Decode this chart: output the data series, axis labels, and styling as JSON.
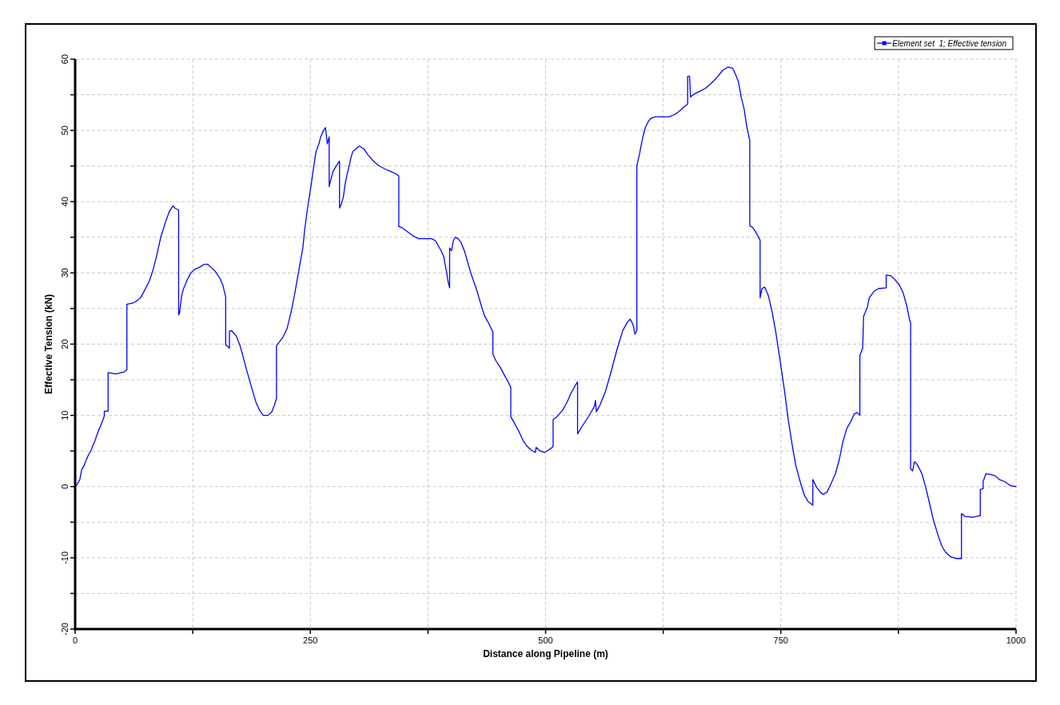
{
  "chart_data": {
    "type": "line",
    "xlabel": "Distance along Pipeline (m)",
    "ylabel": "Effective Tension (kN)",
    "xlim": [
      0,
      1000
    ],
    "xticks": [
      0,
      {
        "value": 125,
        "label": null
      },
      250,
      {
        "value": 375,
        "label": null
      },
      500,
      {
        "value": 625,
        "label": null
      },
      750,
      {
        "value": 875,
        "label": null
      },
      1000
    ],
    "ylim": [
      -20,
      60
    ],
    "yticks": [
      -20,
      {
        "value": -15,
        "label": null
      },
      -10,
      {
        "value": -5,
        "label": null
      },
      0,
      {
        "value": 5,
        "label": null
      },
      10,
      {
        "value": 15,
        "label": null
      },
      20,
      {
        "value": 25,
        "label": null
      },
      30,
      {
        "value": 35,
        "label": null
      },
      40,
      {
        "value": 45,
        "label": null
      },
      50,
      {
        "value": 55,
        "label": null
      },
      60
    ],
    "grid": true,
    "legend": "top right",
    "x": [
      0,
      2,
      5,
      7,
      10,
      12,
      14,
      17,
      19,
      21,
      23,
      25,
      27,
      29,
      31,
      31,
      35,
      35,
      43,
      52,
      55,
      55,
      62,
      66,
      70,
      74,
      79,
      83,
      87,
      91,
      96,
      100,
      104,
      106,
      110,
      110,
      111,
      113,
      115,
      119,
      123,
      127,
      131,
      137,
      141,
      145,
      149,
      154,
      157,
      160,
      160,
      162,
      164,
      164,
      166,
      171,
      175,
      179,
      183,
      188,
      192,
      196,
      200,
      205,
      209,
      212,
      214,
      214,
      217,
      221,
      225,
      229,
      233,
      237,
      242,
      244,
      247,
      250,
      253,
      256,
      259,
      261,
      264,
      266,
      267,
      268,
      270,
      270,
      271,
      274,
      277,
      281,
      281,
      283,
      285,
      287,
      289,
      291,
      293,
      295,
      299,
      302,
      307,
      311,
      317,
      322,
      329,
      336,
      341,
      344,
      344,
      348,
      353,
      359,
      365,
      379,
      383,
      386,
      389,
      392,
      393,
      395,
      396,
      398,
      398,
      400,
      402,
      404,
      407,
      410,
      414,
      418,
      422,
      427,
      431,
      435,
      440,
      444,
      444,
      447,
      452,
      456,
      461,
      463,
      463,
      467,
      471,
      476,
      480,
      485,
      489,
      490,
      494,
      499,
      503,
      508,
      508,
      512,
      518,
      523,
      527,
      532,
      534,
      534,
      539,
      546,
      552,
      553,
      554,
      558,
      564,
      570,
      576,
      582,
      587,
      590,
      593,
      595,
      597,
      597,
      600,
      602,
      604,
      606,
      609,
      612,
      617,
      631,
      637,
      643,
      647,
      651,
      651,
      653,
      654,
      658,
      664,
      670,
      676,
      682,
      688,
      694,
      699,
      702,
      705,
      708,
      711,
      714,
      717,
      717,
      720,
      723,
      728,
      728,
      730,
      733,
      737,
      741,
      745,
      749,
      754,
      758,
      762,
      766,
      771,
      775,
      779,
      784,
      784,
      788,
      792,
      795,
      799,
      803,
      808,
      812,
      816,
      820,
      825,
      828,
      831,
      834,
      834,
      837,
      838,
      842,
      844,
      849,
      854,
      862,
      862,
      867,
      871,
      876,
      880,
      884,
      887,
      888,
      888,
      890,
      892,
      895,
      900,
      904,
      908,
      912,
      917,
      921,
      925,
      931,
      937,
      942,
      942,
      946,
      954,
      961,
      962,
      962,
      965,
      965,
      968,
      973,
      978,
      982,
      988,
      992,
      995,
      1000
    ],
    "series": [
      {
        "name": "Element set  1; Effective tension",
        "color": "#0000ff",
        "values": [
          0,
          0.3,
          1.0,
          2.4,
          3.1,
          3.8,
          4.4,
          5.1,
          5.8,
          6.4,
          7.2,
          7.9,
          8.5,
          9.2,
          9.9,
          10.6,
          10.6,
          16.0,
          15.8,
          16.1,
          16.4,
          25.6,
          25.8,
          26.1,
          26.6,
          27.6,
          28.9,
          30.5,
          32.6,
          35.0,
          37.1,
          38.6,
          39.4,
          39.1,
          38.8,
          24.1,
          24.4,
          26.6,
          27.7,
          29.0,
          30.0,
          30.5,
          30.7,
          31.2,
          31.2,
          30.7,
          30.2,
          29.2,
          28.3,
          26.6,
          19.9,
          19.7,
          19.4,
          21.8,
          21.9,
          21.2,
          19.9,
          18.0,
          16.0,
          13.7,
          11.9,
          10.7,
          10.0,
          10.0,
          10.5,
          11.5,
          12.4,
          19.8,
          20.3,
          21.0,
          22.1,
          24.2,
          26.8,
          29.8,
          33.5,
          36.1,
          39.1,
          41.6,
          44.4,
          47.0,
          48.1,
          49.1,
          50.0,
          50.4,
          49.4,
          48.1,
          49.1,
          42.1,
          42.7,
          44.2,
          44.9,
          45.7,
          39.1,
          39.7,
          40.6,
          42.5,
          43.8,
          44.9,
          46.1,
          47.0,
          47.5,
          47.8,
          47.4,
          46.6,
          45.7,
          45.1,
          44.6,
          44.2,
          43.9,
          43.6,
          36.5,
          36.3,
          35.8,
          35.2,
          34.8,
          34.8,
          34.5,
          33.8,
          33.1,
          32.2,
          31.3,
          30.0,
          29.0,
          27.9,
          33.5,
          33.1,
          34.5,
          35.0,
          34.8,
          34.3,
          33.0,
          31.1,
          29.4,
          27.5,
          25.7,
          24.0,
          22.8,
          21.7,
          18.6,
          17.7,
          16.7,
          15.7,
          14.5,
          13.9,
          9.8,
          8.9,
          7.9,
          6.5,
          5.7,
          5.1,
          4.8,
          5.5,
          5.0,
          4.8,
          5.1,
          5.6,
          9.4,
          9.8,
          10.7,
          11.9,
          13.1,
          14.3,
          14.7,
          7.4,
          8.5,
          9.9,
          11.3,
          12.1,
          10.5,
          11.5,
          13.5,
          16.3,
          19.3,
          21.9,
          23.1,
          23.5,
          22.7,
          21.4,
          21.9,
          45.0,
          46.8,
          48.2,
          49.4,
          50.4,
          51.2,
          51.7,
          51.9,
          51.9,
          52.2,
          52.8,
          53.3,
          53.7,
          57.6,
          57.6,
          54.7,
          55.1,
          55.5,
          55.9,
          56.6,
          57.4,
          58.4,
          58.9,
          58.7,
          57.8,
          56.8,
          54.6,
          53.0,
          50.4,
          48.6,
          36.6,
          36.4,
          35.8,
          34.6,
          26.5,
          27.8,
          28.0,
          26.7,
          24.4,
          21.4,
          17.9,
          13.4,
          9.3,
          5.9,
          2.9,
          0.5,
          -1.2,
          -2.1,
          -2.6,
          1.0,
          -0.1,
          -0.8,
          -1.1,
          -0.8,
          0.3,
          1.8,
          3.7,
          6.3,
          8.1,
          9.3,
          10.2,
          10.4,
          10.0,
          18.4,
          19.4,
          23.9,
          25.2,
          26.5,
          27.4,
          27.8,
          27.9,
          29.7,
          29.6,
          29.1,
          28.3,
          27.2,
          25.3,
          23.3,
          23.0,
          2.5,
          2.2,
          3.5,
          3.1,
          1.8,
          -0.1,
          -2.3,
          -4.6,
          -6.8,
          -8.3,
          -9.2,
          -9.9,
          -10.1,
          -10.1,
          -3.8,
          -4.2,
          -4.3,
          -4.1,
          -4.1,
          -0.4,
          -0.3,
          0.7,
          1.8,
          1.7,
          1.5,
          1.0,
          0.7,
          0.3,
          0.1,
          0
        ]
      }
    ]
  }
}
